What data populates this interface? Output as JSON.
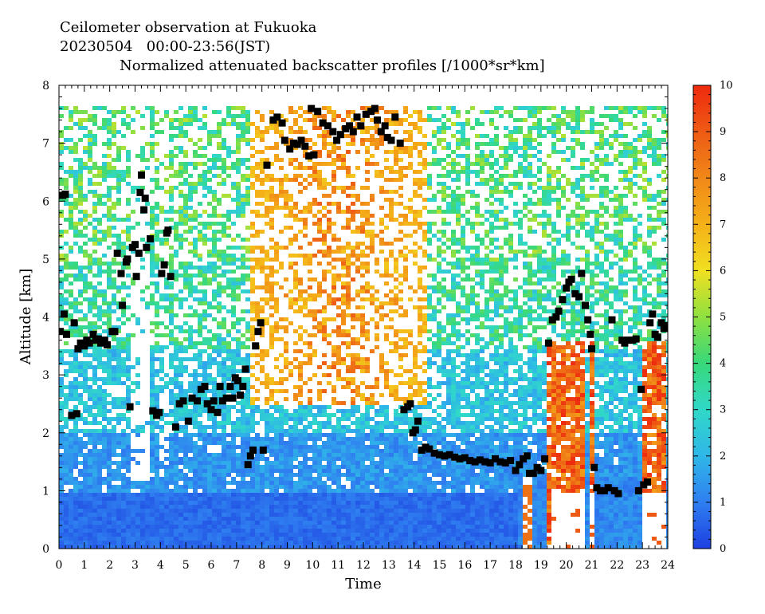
{
  "header": {
    "line1": "Ceilometer observation at Fukuoka",
    "line2": "20230504   00:00-23:56(JST)",
    "line3": "Normalized attenuated backscatter profiles [/1000*sr*km]"
  },
  "chart_data": {
    "type": "heatmap",
    "title": "Normalized attenuated backscatter profiles [/1000*sr*km]",
    "xlabel": "Time",
    "ylabel": "Altitude [km]",
    "xlim": [
      0,
      24
    ],
    "ylim": [
      0,
      8
    ],
    "x_ticks": [
      0,
      1,
      2,
      3,
      4,
      5,
      6,
      7,
      8,
      9,
      10,
      11,
      12,
      13,
      14,
      15,
      16,
      17,
      18,
      19,
      20,
      21,
      22,
      23,
      24
    ],
    "y_ticks": [
      0,
      1,
      2,
      3,
      4,
      5,
      6,
      7,
      8
    ],
    "data_top_altitude": 7.68,
    "colorbar": {
      "range": [
        0,
        10
      ],
      "ticks": [
        0,
        1,
        2,
        3,
        4,
        5,
        6,
        7,
        8,
        9,
        10
      ],
      "stops": [
        {
          "v": 0,
          "color": "#1d3fe0"
        },
        {
          "v": 1,
          "color": "#2f7ff0"
        },
        {
          "v": 2,
          "color": "#2fb7e8"
        },
        {
          "v": 3,
          "color": "#30d8c8"
        },
        {
          "v": 4,
          "color": "#37d87a"
        },
        {
          "v": 5,
          "color": "#8fe040"
        },
        {
          "v": 6,
          "color": "#f0e020"
        },
        {
          "v": 7,
          "color": "#f5b018"
        },
        {
          "v": 8,
          "color": "#f08818"
        },
        {
          "v": 9,
          "color": "#ee5a14"
        },
        {
          "v": 10,
          "color": "#ee2a0e"
        }
      ]
    },
    "cloud_base_markers": [
      [
        0.05,
        3.75
      ],
      [
        0.15,
        6.1
      ],
      [
        0.25,
        6.12
      ],
      [
        0.2,
        4.05
      ],
      [
        0.3,
        3.7
      ],
      [
        0.5,
        2.3
      ],
      [
        0.6,
        3.9
      ],
      [
        0.7,
        2.33
      ],
      [
        0.75,
        3.45
      ],
      [
        0.85,
        3.55
      ],
      [
        1.0,
        3.5
      ],
      [
        1.1,
        3.6
      ],
      [
        1.2,
        3.55
      ],
      [
        1.35,
        3.7
      ],
      [
        1.45,
        3.6
      ],
      [
        1.55,
        3.62
      ],
      [
        1.65,
        3.55
      ],
      [
        1.8,
        3.6
      ],
      [
        1.9,
        3.52
      ],
      [
        2.1,
        3.75
      ],
      [
        2.2,
        3.75
      ],
      [
        2.3,
        5.1
      ],
      [
        2.45,
        4.75
      ],
      [
        2.5,
        4.2
      ],
      [
        2.65,
        4.95
      ],
      [
        2.7,
        5.0
      ],
      [
        2.8,
        2.45
      ],
      [
        2.9,
        5.2
      ],
      [
        3.0,
        5.25
      ],
      [
        3.05,
        4.7
      ],
      [
        3.15,
        5.1
      ],
      [
        3.2,
        6.15
      ],
      [
        3.25,
        6.45
      ],
      [
        3.35,
        5.85
      ],
      [
        3.4,
        6.05
      ],
      [
        3.45,
        5.2
      ],
      [
        3.6,
        5.35
      ],
      [
        3.7,
        2.38
      ],
      [
        3.85,
        2.3
      ],
      [
        3.95,
        2.35
      ],
      [
        4.05,
        4.75
      ],
      [
        4.15,
        4.9
      ],
      [
        4.25,
        5.45
      ],
      [
        4.3,
        5.5
      ],
      [
        4.4,
        4.7
      ],
      [
        4.6,
        2.1
      ],
      [
        4.75,
        2.5
      ],
      [
        4.9,
        2.55
      ],
      [
        5.1,
        2.2
      ],
      [
        5.25,
        2.6
      ],
      [
        5.45,
        2.55
      ],
      [
        5.6,
        2.75
      ],
      [
        5.75,
        2.8
      ],
      [
        5.85,
        2.5
      ],
      [
        6.0,
        2.4
      ],
      [
        6.1,
        2.55
      ],
      [
        6.25,
        2.35
      ],
      [
        6.35,
        2.8
      ],
      [
        6.45,
        2.55
      ],
      [
        6.6,
        2.6
      ],
      [
        6.75,
        2.8
      ],
      [
        6.85,
        2.6
      ],
      [
        6.95,
        2.95
      ],
      [
        7.05,
        2.9
      ],
      [
        7.15,
        2.65
      ],
      [
        7.25,
        2.8
      ],
      [
        7.35,
        3.1
      ],
      [
        7.45,
        1.45
      ],
      [
        7.55,
        1.6
      ],
      [
        7.65,
        1.7
      ],
      [
        7.75,
        3.5
      ],
      [
        7.85,
        3.75
      ],
      [
        7.95,
        3.9
      ],
      [
        8.05,
        1.7
      ],
      [
        8.2,
        6.62
      ],
      [
        8.45,
        7.4
      ],
      [
        8.6,
        7.45
      ],
      [
        8.8,
        7.35
      ],
      [
        8.9,
        7.05
      ],
      [
        9.1,
        6.9
      ],
      [
        9.25,
        7.0
      ],
      [
        9.4,
        6.98
      ],
      [
        9.55,
        7.05
      ],
      [
        9.7,
        6.95
      ],
      [
        9.85,
        6.78
      ],
      [
        10.05,
        6.8
      ],
      [
        9.95,
        7.6
      ],
      [
        10.2,
        7.55
      ],
      [
        10.4,
        7.35
      ],
      [
        10.6,
        7.3
      ],
      [
        10.8,
        7.2
      ],
      [
        10.95,
        7.05
      ],
      [
        11.1,
        7.15
      ],
      [
        11.3,
        7.25
      ],
      [
        11.45,
        7.3
      ],
      [
        11.6,
        7.2
      ],
      [
        11.75,
        7.45
      ],
      [
        11.9,
        7.3
      ],
      [
        12.1,
        7.5
      ],
      [
        12.3,
        7.55
      ],
      [
        12.45,
        7.6
      ],
      [
        12.55,
        7.4
      ],
      [
        12.7,
        7.2
      ],
      [
        12.85,
        7.3
      ],
      [
        12.95,
        7.1
      ],
      [
        13.1,
        7.05
      ],
      [
        13.25,
        7.45
      ],
      [
        13.45,
        7.0
      ],
      [
        13.6,
        2.4
      ],
      [
        13.75,
        2.45
      ],
      [
        13.85,
        2.5
      ],
      [
        13.95,
        2.0
      ],
      [
        14.05,
        2.05
      ],
      [
        14.15,
        2.2
      ],
      [
        14.3,
        1.7
      ],
      [
        14.45,
        1.75
      ],
      [
        14.6,
        1.72
      ],
      [
        14.8,
        1.65
      ],
      [
        15.0,
        1.62
      ],
      [
        15.2,
        1.6
      ],
      [
        15.4,
        1.62
      ],
      [
        15.6,
        1.58
      ],
      [
        15.8,
        1.55
      ],
      [
        16.0,
        1.57
      ],
      [
        16.2,
        1.52
      ],
      [
        16.4,
        1.5
      ],
      [
        16.6,
        1.53
      ],
      [
        16.8,
        1.5
      ],
      [
        17.0,
        1.48
      ],
      [
        17.2,
        1.55
      ],
      [
        17.4,
        1.5
      ],
      [
        17.6,
        1.48
      ],
      [
        17.8,
        1.52
      ],
      [
        18.0,
        1.35
      ],
      [
        18.15,
        1.45
      ],
      [
        18.3,
        1.55
      ],
      [
        18.45,
        1.6
      ],
      [
        18.55,
        1.3
      ],
      [
        18.7,
        1.3
      ],
      [
        18.85,
        1.4
      ],
      [
        19.0,
        1.35
      ],
      [
        19.15,
        1.55
      ],
      [
        19.3,
        3.55
      ],
      [
        19.45,
        3.95
      ],
      [
        19.6,
        4.0
      ],
      [
        19.7,
        4.1
      ],
      [
        19.85,
        4.3
      ],
      [
        20.0,
        4.5
      ],
      [
        20.1,
        4.6
      ],
      [
        20.2,
        4.65
      ],
      [
        20.35,
        4.4
      ],
      [
        20.5,
        4.35
      ],
      [
        20.6,
        4.75
      ],
      [
        20.75,
        4.2
      ],
      [
        20.85,
        3.95
      ],
      [
        20.95,
        3.7
      ],
      [
        21.0,
        3.45
      ],
      [
        21.1,
        1.4
      ],
      [
        21.2,
        1.05
      ],
      [
        21.35,
        1.0
      ],
      [
        21.5,
        1.0
      ],
      [
        21.65,
        1.05
      ],
      [
        21.8,
        3.95
      ],
      [
        21.9,
        1.0
      ],
      [
        22.05,
        0.95
      ],
      [
        22.2,
        3.6
      ],
      [
        22.3,
        3.55
      ],
      [
        22.45,
        3.6
      ],
      [
        22.6,
        3.6
      ],
      [
        22.75,
        3.62
      ],
      [
        22.85,
        1.0
      ],
      [
        22.95,
        2.75
      ],
      [
        23.05,
        1.1
      ],
      [
        23.2,
        1.15
      ],
      [
        23.3,
        3.9
      ],
      [
        23.4,
        4.05
      ],
      [
        23.5,
        3.7
      ],
      [
        23.6,
        3.65
      ],
      [
        23.75,
        3.9
      ],
      [
        23.85,
        3.8
      ],
      [
        23.95,
        3.85
      ]
    ]
  }
}
